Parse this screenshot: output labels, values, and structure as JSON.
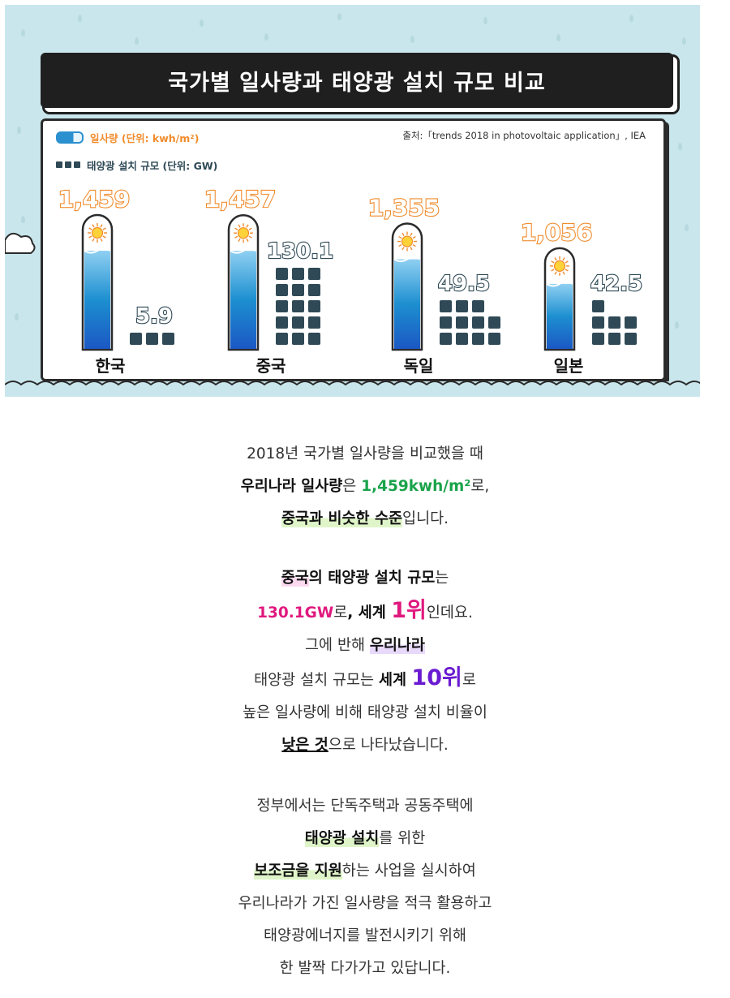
{
  "infographic": {
    "title": "국가별 일사량과 태양광 설치 규모 비교",
    "source": "출처:「trends 2018 in photovoltaic application」, IEA",
    "legend": {
      "solar": "일사량 (단위: kwh/m²)",
      "pv": "태양광 설치 규모 (단위: GW)"
    }
  },
  "chart_data": {
    "type": "bar",
    "categories": [
      "한국",
      "중국",
      "독일",
      "일본"
    ],
    "series": [
      {
        "name": "일사량 (단위: kwh/m²)",
        "values": [
          1459,
          1457,
          1355,
          1056
        ],
        "labels": [
          "1,459",
          "1,457",
          "1,355",
          "1,056"
        ]
      },
      {
        "name": "태양광 설치 규모 (단위: GW)",
        "values": [
          5.9,
          130.1,
          49.5,
          42.5
        ],
        "labels": [
          "5.9",
          "130.1",
          "49.5",
          "42.5"
        ],
        "squares": [
          3,
          15,
          11,
          7
        ]
      }
    ],
    "colors": {
      "solar_label": "#f08c2d",
      "solar_fill": "#1d8fd0",
      "pv_square": "#2f4a56",
      "background": "#c9e6ec"
    }
  },
  "text": {
    "p1a": "2018년 국가별 일사량을 비교했을 때",
    "p1b_bold": "우리나라 일사량",
    "p1b_mid": "은 ",
    "p1b_green": "1,459kwh/m²",
    "p1b_end": "로,",
    "p1c_hl": "중국과 비슷한 수준",
    "p1c_end": "입니다.",
    "p2a_hl": "중국",
    "p2a_bold": "의 태양광 설치 규모",
    "p2a_end": "는",
    "p2b_magenta": "130.1GW",
    "p2b_mid": "로",
    "p2b_bold": ", 세계 ",
    "p2b_big": "1위",
    "p2b_end": "인데요.",
    "p2c_start": "그에 반해 ",
    "p2c_hl": "우리나라",
    "p2d_start": "태양광 설치 규모는 ",
    "p2d_bold": "세계 ",
    "p2d_big": "10위",
    "p2d_end": "로",
    "p2e": "높은 일사량에 비해 태양광 설치 비율이",
    "p2f_u": "낮은 것",
    "p2f_end": "으로 나타났습니다.",
    "p3a": "정부에서는 단독주택과 공동주택에",
    "p3b_hl": "태양광 설치",
    "p3b_end": "를 위한",
    "p3c_hl": "보조금을 지원",
    "p3c_end": "하는 사업을 실시하여",
    "p3d": "우리나라가 가진 일사량을 적극 활용하고",
    "p3e": "태양광에너지를 발전시키기 위해",
    "p3f": "한 발짝 다가가고 있답니다."
  }
}
